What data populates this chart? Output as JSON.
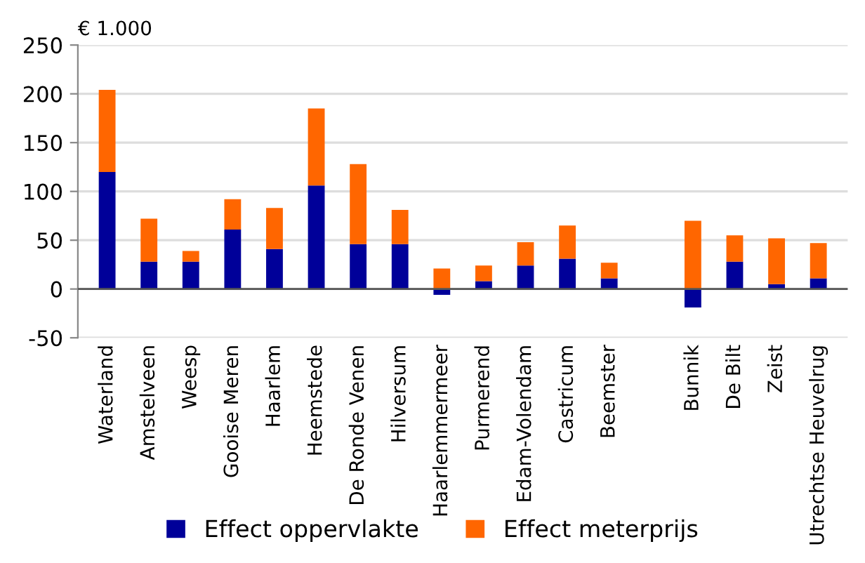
{
  "chart_data": {
    "type": "bar",
    "stacked": true,
    "ylabel": "€ 1.000",
    "categories": [
      "Waterland",
      "Amstelveen",
      "Weesp",
      "Gooise Meren",
      "Haarlem",
      "Heemstede",
      "De Ronde Venen",
      "Hilversum",
      "Haarlemmermeer",
      "Purmerend",
      "Edam-Volendam",
      "Castricum",
      "Beemster",
      null,
      "Bunnik",
      "De Bilt",
      "Zeist",
      "Utrechtse Heuvelrug"
    ],
    "series": [
      {
        "name": "Effect oppervlakte",
        "color": "#000099",
        "values": [
          120,
          28,
          28,
          61,
          41,
          106,
          46,
          46,
          -6,
          8,
          24,
          31,
          11,
          null,
          -19,
          28,
          5,
          11
        ]
      },
      {
        "name": "Effect meterprijs",
        "color": "#ff6600",
        "values": [
          84,
          44,
          11,
          31,
          42,
          79,
          82,
          35,
          21,
          16,
          24,
          34,
          16,
          null,
          70,
          27,
          47,
          36
        ]
      }
    ],
    "ylim": [
      -50,
      250
    ],
    "yticks": [
      -50,
      0,
      50,
      100,
      150,
      200,
      250
    ],
    "grid": "y",
    "legend": "bottom"
  }
}
